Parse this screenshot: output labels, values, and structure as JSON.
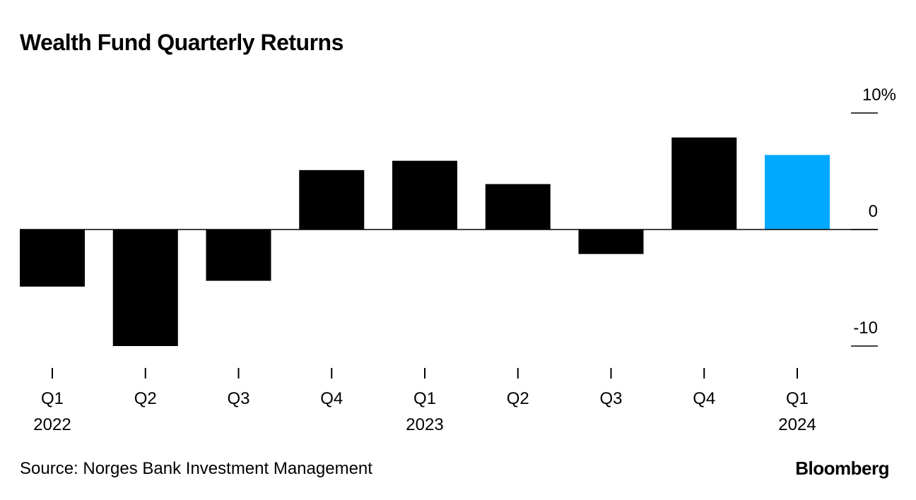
{
  "chart_data": {
    "type": "bar",
    "title": "Wealth Fund Quarterly Returns",
    "categories": [
      "Q1 2022",
      "Q2 2022",
      "Q3 2022",
      "Q4 2022",
      "Q1 2023",
      "Q2 2023",
      "Q3 2023",
      "Q4 2023",
      "Q1 2024"
    ],
    "tick_labels": [
      {
        "quarter": "Q1",
        "year": "2022"
      },
      {
        "quarter": "Q2",
        "year": ""
      },
      {
        "quarter": "Q3",
        "year": ""
      },
      {
        "quarter": "Q4",
        "year": ""
      },
      {
        "quarter": "Q1",
        "year": "2023"
      },
      {
        "quarter": "Q2",
        "year": ""
      },
      {
        "quarter": "Q3",
        "year": ""
      },
      {
        "quarter": "Q4",
        "year": ""
      },
      {
        "quarter": "Q1",
        "year": "2024"
      }
    ],
    "values": [
      -4.9,
      -10.0,
      -4.4,
      5.1,
      5.9,
      3.9,
      -2.1,
      7.9,
      6.4
    ],
    "highlight_index": 8,
    "colors": {
      "default": "#000000",
      "highlight": "#00A9FF"
    },
    "ylim": [
      -10,
      10
    ],
    "yticks": [
      {
        "value": 10,
        "label": "10%"
      },
      {
        "value": 0,
        "label": "0"
      },
      {
        "value": -10,
        "label": "-10"
      }
    ],
    "ylabel": "",
    "xlabel": "",
    "grid": false,
    "source": "Source: Norges Bank Investment Management",
    "brand": "Bloomberg"
  }
}
